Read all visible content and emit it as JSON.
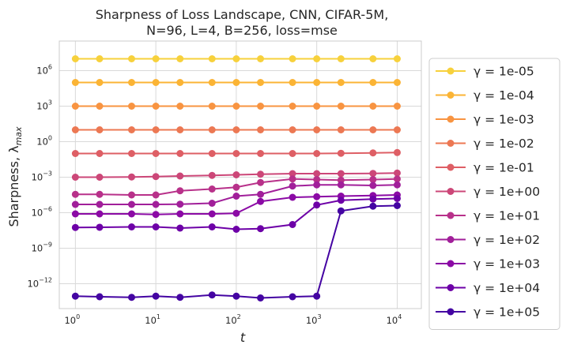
{
  "chart_data": {
    "type": "line",
    "title": "Sharpness of Loss Landscape, CNN, CIFAR-5M,\nN=96, L=4, B=256, loss=mse",
    "xlabel": "t",
    "ylabel": "Sharpness, λ_max",
    "x_scale": "log",
    "y_scale": "log",
    "xlim_log10": [
      -0.2,
      4.3
    ],
    "ylim_log10": [
      -14.1,
      8.5
    ],
    "x": [
      1,
      2,
      5,
      10,
      20,
      50,
      100,
      200,
      500,
      1000,
      2000,
      5000,
      10000
    ],
    "x_ticks": [
      {
        "base": "10",
        "exp": "0",
        "value_log10": 0
      },
      {
        "base": "10",
        "exp": "1",
        "value_log10": 1
      },
      {
        "base": "10",
        "exp": "2",
        "value_log10": 2
      },
      {
        "base": "10",
        "exp": "3",
        "value_log10": 3
      },
      {
        "base": "10",
        "exp": "4",
        "value_log10": 4
      }
    ],
    "y_ticks": [
      {
        "base": "10",
        "exp": "6",
        "value_log10": 6
      },
      {
        "base": "10",
        "exp": "3",
        "value_log10": 3
      },
      {
        "base": "10",
        "exp": "0",
        "value_log10": 0
      },
      {
        "base": "10",
        "exp": "−3",
        "value_log10": -3
      },
      {
        "base": "10",
        "exp": "−6",
        "value_log10": -6
      },
      {
        "base": "10",
        "exp": "−9",
        "value_log10": -9
      },
      {
        "base": "10",
        "exp": "−12",
        "value_log10": -12
      }
    ],
    "legend_position": "outside-right",
    "series": [
      {
        "name": "γ =  1e-05",
        "color": "#f7d13c",
        "log10_values": [
          7.0,
          7.0,
          7.0,
          7.0,
          7.0,
          7.0,
          7.0,
          7.0,
          7.0,
          7.0,
          7.0,
          7.0,
          7.0
        ]
      },
      {
        "name": "γ =  1e-04",
        "color": "#fbb435",
        "log10_values": [
          5.0,
          5.0,
          5.0,
          5.0,
          5.0,
          5.0,
          5.0,
          5.0,
          5.0,
          5.0,
          5.0,
          5.0,
          5.0
        ]
      },
      {
        "name": "γ =  1e-03",
        "color": "#f89441",
        "log10_values": [
          3.0,
          3.0,
          3.0,
          3.0,
          3.0,
          3.0,
          3.0,
          3.0,
          3.0,
          3.0,
          3.0,
          3.0,
          3.0
        ]
      },
      {
        "name": "γ =  1e-02",
        "color": "#ec7853",
        "log10_values": [
          1.0,
          1.0,
          1.0,
          1.0,
          1.0,
          1.0,
          1.0,
          1.0,
          1.0,
          1.0,
          1.0,
          1.0,
          1.0
        ]
      },
      {
        "name": "γ =  1e-01",
        "color": "#de5f65",
        "log10_values": [
          -1.0,
          -1.0,
          -1.0,
          -1.0,
          -1.0,
          -1.0,
          -1.0,
          -1.0,
          -1.0,
          -1.0,
          -0.98,
          -0.95,
          -0.92
        ]
      },
      {
        "name": "γ =  1e+00",
        "color": "#cc4778",
        "log10_values": [
          -3.0,
          -3.0,
          -2.98,
          -2.95,
          -2.9,
          -2.85,
          -2.8,
          -2.75,
          -2.7,
          -2.7,
          -2.7,
          -2.68,
          -2.65
        ]
      },
      {
        "name": "γ =  1e+01",
        "color": "#b8318a",
        "log10_values": [
          -4.45,
          -4.45,
          -4.5,
          -4.5,
          -4.15,
          -4.0,
          -3.85,
          -3.45,
          -3.15,
          -3.2,
          -3.25,
          -3.2,
          -3.15
        ]
      },
      {
        "name": "γ =  1e+02",
        "color": "#a11f9a",
        "log10_values": [
          -5.3,
          -5.3,
          -5.3,
          -5.3,
          -5.28,
          -5.2,
          -4.6,
          -4.45,
          -3.75,
          -3.65,
          -3.65,
          -3.7,
          -3.65
        ]
      },
      {
        "name": "γ =  1e+03",
        "color": "#8b0aa5",
        "log10_values": [
          -6.1,
          -6.1,
          -6.1,
          -6.15,
          -6.1,
          -6.1,
          -6.05,
          -5.05,
          -4.7,
          -4.65,
          -4.6,
          -4.55,
          -4.5
        ]
      },
      {
        "name": "γ =  1e+04",
        "color": "#6d00a7",
        "log10_values": [
          -7.25,
          -7.23,
          -7.2,
          -7.2,
          -7.3,
          -7.2,
          -7.4,
          -7.35,
          -7.0,
          -5.35,
          -4.95,
          -4.85,
          -4.8
        ]
      },
      {
        "name": "γ =  1e+05",
        "color": "#4404a2",
        "log10_values": [
          -13.05,
          -13.1,
          -13.15,
          -13.05,
          -13.15,
          -12.95,
          -13.05,
          -13.2,
          -13.1,
          -13.05,
          -5.85,
          -5.45,
          -5.4
        ]
      }
    ]
  }
}
